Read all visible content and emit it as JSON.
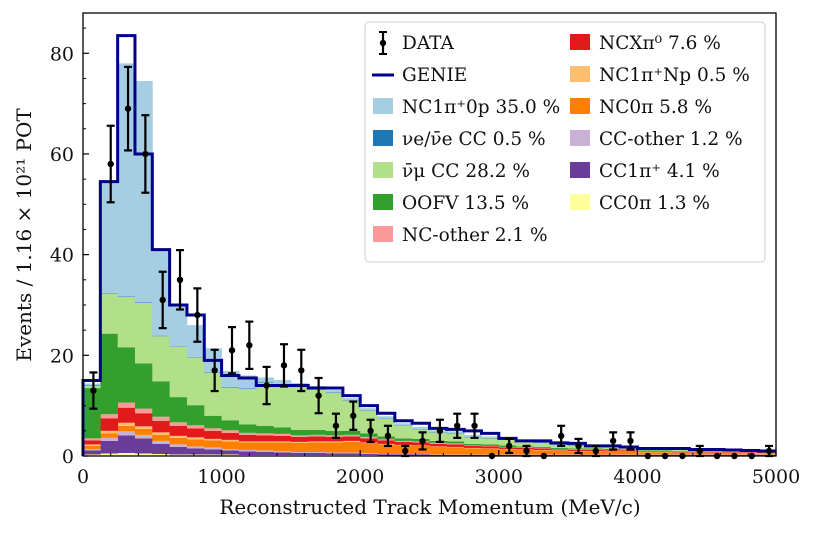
{
  "chart_data": {
    "type": "bar",
    "subtype": "stacked-histogram-with-data-points",
    "title": "",
    "xlabel": "Reconstructed Track Momentum (MeV/c)",
    "ylabel": "Events / 1.16 × 10²¹ POT",
    "xlim": [
      0,
      5000
    ],
    "ylim": [
      0,
      88
    ],
    "xticks": [
      0,
      1000,
      2000,
      3000,
      4000,
      5000
    ],
    "yticks": [
      0,
      20,
      40,
      60,
      80
    ],
    "legend_position": "top-right",
    "bin_edges": [
      0,
      125,
      250,
      375,
      500,
      625,
      750,
      875,
      1000,
      1125,
      1250,
      1375,
      1500,
      1625,
      1750,
      1875,
      2000,
      2125,
      2250,
      2375,
      2500,
      2625,
      2750,
      2875,
      3000,
      3125,
      3250,
      3375,
      3500,
      3625,
      3750,
      3875,
      4000,
      4125,
      4250,
      4375,
      4500,
      4625,
      4750,
      4875,
      5000
    ],
    "series": [
      {
        "name": "CC0π 1.3 %",
        "color": "#ffff99",
        "values": [
          0.3,
          0.5,
          0.6,
          0.5,
          0.4,
          0.3,
          0.3,
          0.3,
          0.3,
          0.2,
          0.2,
          0.2,
          0.2,
          0.2,
          0.2,
          0.2,
          0.2,
          0.1,
          0.1,
          0.1,
          0.1,
          0.1,
          0.1,
          0.1,
          0.1,
          0.1,
          0.1,
          0.1,
          0.1,
          0.1,
          0.1,
          0.1,
          0.1,
          0.1,
          0.1,
          0.1,
          0.1,
          0.1,
          0.1,
          0.1
        ]
      },
      {
        "name": "CC1π⁺ 4.1 %",
        "color": "#6a3d9a",
        "values": [
          0.8,
          2.5,
          3.5,
          3.0,
          2.0,
          1.5,
          1.2,
          1.0,
          0.8,
          0.7,
          0.6,
          0.5,
          0.4,
          0.4,
          0.3,
          0.3,
          0.2,
          0.2,
          0.2,
          0.2,
          0.1,
          0.1,
          0.1,
          0.1,
          0.1,
          0.1,
          0.1,
          0.1,
          0.1,
          0.1,
          0.1,
          0.1,
          0.1,
          0.1,
          0.1,
          0.1,
          0.1,
          0.1,
          0.1,
          0.1
        ]
      },
      {
        "name": "CC-other 1.2 %",
        "color": "#cab2d6",
        "values": [
          0.3,
          0.6,
          0.8,
          0.7,
          0.6,
          0.5,
          0.4,
          0.4,
          0.3,
          0.3,
          0.3,
          0.3,
          0.2,
          0.2,
          0.2,
          0.2,
          0.2,
          0.1,
          0.1,
          0.1,
          0.1,
          0.1,
          0.1,
          0.1,
          0.1,
          0.1,
          0.1,
          0.1,
          0.1,
          0.1,
          0.1,
          0.1,
          0.1,
          0.1,
          0.1,
          0.1,
          0.1,
          0.1,
          0.1,
          0.1
        ]
      },
      {
        "name": "NC0π 5.8 %",
        "color": "#ff7f00",
        "values": [
          0.6,
          0.9,
          1.1,
          1.2,
          1.2,
          1.3,
          1.4,
          1.4,
          1.5,
          1.5,
          1.6,
          1.7,
          1.8,
          1.9,
          2.0,
          2.1,
          2.0,
          1.9,
          1.7,
          1.6,
          1.5,
          1.4,
          1.2,
          1.1,
          1.0,
          0.9,
          0.8,
          0.7,
          0.6,
          0.6,
          0.5,
          0.5,
          0.4,
          0.4,
          0.3,
          0.3,
          0.3,
          0.3,
          0.2,
          0.2
        ]
      },
      {
        "name": "NC1π⁺Np 0.5 %",
        "color": "#fdbf6f",
        "values": [
          0.3,
          0.5,
          0.6,
          0.5,
          0.5,
          0.4,
          0.4,
          0.3,
          0.3,
          0.2,
          0.2,
          0.2,
          0.2,
          0.2,
          0.2,
          0.2,
          0.1,
          0.1,
          0.1,
          0.1,
          0.1,
          0.1,
          0.1,
          0.1,
          0.1,
          0.1,
          0.1,
          0.1,
          0.1,
          0.1,
          0.1,
          0.1,
          0.1,
          0.1,
          0.1,
          0.1,
          0.1,
          0.1,
          0.1,
          0.1
        ]
      },
      {
        "name": "NCXπ⁰ 7.6 %",
        "color": "#e31a1c",
        "values": [
          0.8,
          2.5,
          3.0,
          2.6,
          2.3,
          2.0,
          1.8,
          1.6,
          1.4,
          1.3,
          1.2,
          1.1,
          1.0,
          1.0,
          0.9,
          0.9,
          0.8,
          0.7,
          0.6,
          0.6,
          0.5,
          0.5,
          0.4,
          0.4,
          0.3,
          0.3,
          0.3,
          0.2,
          0.2,
          0.2,
          0.2,
          0.2,
          0.1,
          0.1,
          0.1,
          0.1,
          0.1,
          0.1,
          0.1,
          0.1
        ]
      },
      {
        "name": "NC-other 2.1 %",
        "color": "#fb9a99",
        "values": [
          0.4,
          0.8,
          1.0,
          0.9,
          0.8,
          0.7,
          0.6,
          0.5,
          0.5,
          0.4,
          0.4,
          0.4,
          0.3,
          0.3,
          0.3,
          0.3,
          0.3,
          0.2,
          0.2,
          0.2,
          0.2,
          0.2,
          0.1,
          0.1,
          0.1,
          0.1,
          0.1,
          0.1,
          0.1,
          0.1,
          0.1,
          0.1,
          0.1,
          0.1,
          0.1,
          0.1,
          0.1,
          0.1,
          0.1,
          0.1
        ]
      },
      {
        "name": "OOFV 13.5 %",
        "color": "#33a02c",
        "values": [
          10.0,
          16.0,
          11.0,
          9.0,
          7.0,
          5.0,
          4.0,
          2.5,
          2.0,
          1.7,
          1.5,
          1.3,
          1.1,
          1.0,
          0.9,
          0.8,
          0.7,
          0.6,
          0.5,
          0.5,
          0.4,
          0.4,
          0.3,
          0.3,
          0.3,
          0.2,
          0.2,
          0.2,
          0.2,
          0.2,
          0.2,
          0.1,
          0.1,
          0.1,
          0.1,
          0.1,
          0.1,
          0.1,
          0.1,
          0.1
        ]
      },
      {
        "name": "ν̄μ CC 28.2 %",
        "color": "#b2df8a",
        "values": [
          0.5,
          8.0,
          10.0,
          12.0,
          9.0,
          10.0,
          9.5,
          8.5,
          6.5,
          7.0,
          8.5,
          8.5,
          8.5,
          8.0,
          7.5,
          6.0,
          4.5,
          3.5,
          2.5,
          1.9,
          1.6,
          1.5,
          1.3,
          1.2,
          1.1,
          1.0,
          0.8,
          0.6,
          0.5,
          0.4,
          0.4,
          0.3,
          0.3,
          0.2,
          0.2,
          0.2,
          0.2,
          0.2,
          0.1,
          0.1
        ]
      },
      {
        "name": "νe/ν̄e CC 0.5 %",
        "color": "#1f78b4",
        "values": [
          0.1,
          0.1,
          0.1,
          0.1,
          0.1,
          0.1,
          0.1,
          0.1,
          0.1,
          0.1,
          0.1,
          0.1,
          0.1,
          0.1,
          0.1,
          0.1,
          0.1,
          0.1,
          0.1,
          0.1,
          0.1,
          0.1,
          0.1,
          0.1,
          0.1,
          0.1,
          0.1,
          0.1,
          0.1,
          0.1,
          0.1,
          0.1,
          0.1,
          0.1,
          0.1,
          0.1,
          0.1,
          0.1,
          0.1,
          0.1
        ]
      },
      {
        "name": "NC1π⁺0p 35.0 %",
        "color": "#a6cee3",
        "values": [
          0.3,
          22.0,
          46.3,
          44.0,
          17.0,
          8.2,
          6.3,
          4.8,
          3.2,
          2.6,
          1.0,
          0.8,
          0.7,
          0.6,
          0.5,
          0.4,
          0.4,
          0.4,
          0.4,
          0.4,
          0.4,
          0.4,
          0.4,
          0.3,
          0.4,
          0.3,
          0.3,
          0.3,
          0.3,
          0.2,
          0.2,
          0.2,
          0.2,
          0.2,
          0.3,
          0.3,
          0.3,
          0.2,
          0.2,
          0.1
        ]
      }
    ],
    "genie": {
      "name": "GENIE",
      "color": "#00008b",
      "values": [
        15,
        54.5,
        83.5,
        60,
        41,
        30,
        28,
        19,
        16,
        15.5,
        14,
        14,
        14,
        13.5,
        13.5,
        12,
        10,
        8.5,
        7,
        6.5,
        5.5,
        5.3,
        5,
        4.5,
        3.5,
        3,
        3,
        2.6,
        2.5,
        2,
        2,
        1.8,
        1.5,
        1.5,
        1.5,
        1.3,
        1.3,
        1.2,
        1.1,
        1
      ]
    },
    "data_points": {
      "name": "DATA",
      "x": [
        75,
        200,
        325,
        450,
        575,
        700,
        825,
        950,
        1075,
        1200,
        1325,
        1450,
        1575,
        1700,
        1825,
        1950,
        2075,
        2200,
        2325,
        2450,
        2575,
        2700,
        2825,
        2950,
        3075,
        3200,
        3325,
        3450,
        3575,
        3700,
        3825,
        3950,
        4075,
        4200,
        4325,
        4450,
        4575,
        4700,
        4825,
        4950
      ],
      "y": [
        13,
        58,
        69,
        60,
        31,
        35,
        28,
        17,
        21,
        22,
        14,
        18,
        17,
        12,
        6,
        8,
        5,
        4,
        1,
        3,
        5,
        6,
        6,
        0,
        2,
        1,
        0,
        4,
        2,
        1,
        3,
        3,
        0,
        0,
        0,
        1,
        0,
        0,
        0,
        1
      ],
      "err": [
        3.6,
        7.6,
        8.3,
        7.7,
        5.6,
        5.9,
        5.3,
        4.1,
        4.6,
        4.7,
        3.7,
        4.2,
        4.1,
        3.5,
        2.4,
        2.8,
        2.2,
        2.0,
        1.0,
        1.7,
        2.2,
        2.4,
        2.4,
        0,
        1.4,
        1.0,
        0,
        2.0,
        1.4,
        1.0,
        1.7,
        1.7,
        0,
        0,
        0,
        1.0,
        0,
        0,
        0,
        1.0
      ]
    },
    "legend": {
      "column1": [
        {
          "label": "DATA",
          "kind": "errorbar",
          "color": "#000000"
        },
        {
          "label": "GENIE",
          "kind": "line",
          "color": "#00008b"
        },
        {
          "label": "NC1π⁺0p 35.0 %",
          "kind": "patch",
          "color": "#a6cee3"
        },
        {
          "label": "νe/ν̄e CC 0.5 %",
          "kind": "patch",
          "color": "#1f78b4"
        },
        {
          "label": "ν̄μ CC 28.2 %",
          "kind": "patch",
          "color": "#b2df8a"
        },
        {
          "label": "OOFV 13.5 %",
          "kind": "patch",
          "color": "#33a02c"
        },
        {
          "label": "NC-other 2.1 %",
          "kind": "patch",
          "color": "#fb9a99"
        }
      ],
      "column2": [
        {
          "label": "NCXπ⁰ 7.6 %",
          "kind": "patch",
          "color": "#e31a1c"
        },
        {
          "label": "NC1π⁺Np 0.5 %",
          "kind": "patch",
          "color": "#fdbf6f"
        },
        {
          "label": "NC0π 5.8 %",
          "kind": "patch",
          "color": "#ff7f00"
        },
        {
          "label": "CC-other 1.2 %",
          "kind": "patch",
          "color": "#cab2d6"
        },
        {
          "label": "CC1π⁺ 4.1 %",
          "kind": "patch",
          "color": "#6a3d9a"
        },
        {
          "label": "CC0π 1.3 %",
          "kind": "patch",
          "color": "#ffff99"
        }
      ]
    }
  }
}
